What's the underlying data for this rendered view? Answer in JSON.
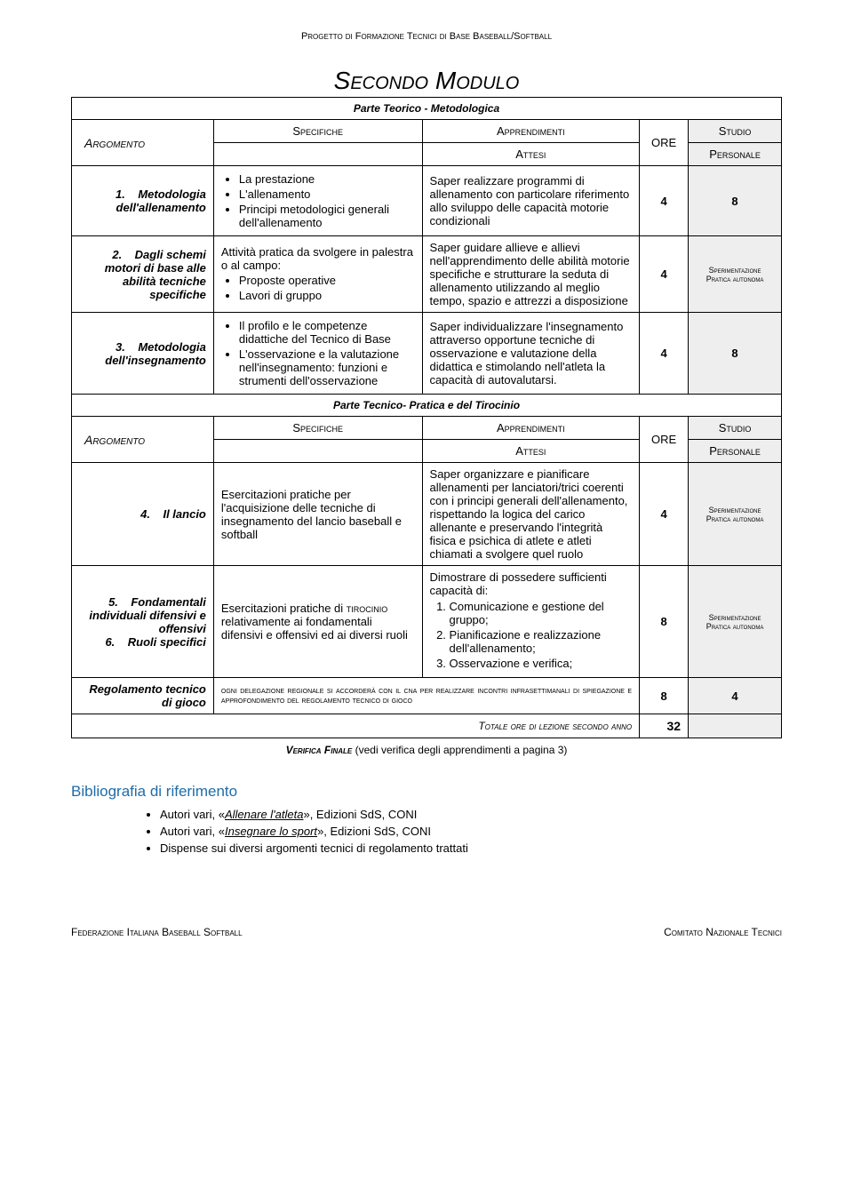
{
  "header": "Progetto di Formazione Tecnici di Base Baseball/Softball",
  "title": "Secondo Modulo",
  "sections": [
    {
      "title": "Parte Teorico - Metodologica",
      "columns": {
        "arg": "Argomento",
        "spec": "Specifiche",
        "appr_top": "Apprendimenti",
        "appr_bot": "Attesi",
        "ore": "ORE",
        "studio_top": "Studio",
        "studio_bot": "Personale"
      },
      "rows": [
        {
          "num": "1.",
          "arg": "Metodologia dell'allenamento",
          "spec_bullets": [
            "La prestazione",
            "L'allenamento",
            "Principi metodologici generali dell'allenamento"
          ],
          "appr": "Saper realizzare programmi di allenamento con particolare riferimento allo sviluppo delle capacità motorie condizionali",
          "ore": "4",
          "studio": "8",
          "studio_small": false
        },
        {
          "num": "2.",
          "arg": "Dagli schemi motori di base alle abilità tecniche specifiche",
          "spec_intro": "Attività pratica da svolgere in palestra o al campo:",
          "spec_bullets": [
            "Proposte operative",
            "Lavori di gruppo"
          ],
          "appr": "Saper guidare allieve e allievi nell'apprendimento delle abilità motorie specifiche e strutturare la seduta di allenamento utilizzando al meglio tempo, spazio e attrezzi a disposizione",
          "ore": "4",
          "studio_lines": [
            "Sperimentazione",
            "Pratica autonoma"
          ],
          "studio_small": true
        },
        {
          "num": "3.",
          "arg": "Metodologia dell'insegnamento",
          "spec_bullets": [
            "Il profilo e le competenze didattiche del Tecnico di Base",
            "L'osservazione e la valutazione nell'insegnamento: funzioni e strumenti dell'osservazione"
          ],
          "appr": "Saper individualizzare l'insegnamento attraverso opportune tecniche di osservazione e valutazione della didattica e stimolando nell'atleta la capacità di autovalutarsi.",
          "ore": "4",
          "studio": "8",
          "studio_small": false
        }
      ]
    },
    {
      "title": "Parte Tecnico- Pratica e del Tirocinio",
      "columns": {
        "arg": "Argomento",
        "spec": "Specifiche",
        "appr_top": "Apprendimenti",
        "appr_bot": "Attesi",
        "ore": "ORE",
        "studio_top": "Studio",
        "studio_bot": "Personale"
      },
      "rows": [
        {
          "num": "4.",
          "arg": "Il lancio",
          "spec": "Esercitazioni pratiche per l'acquisizione delle tecniche di insegnamento del lancio baseball e softball",
          "appr": "Saper organizzare e pianificare allenamenti per lanciatori/trici coerenti con i principi generali dell'allenamento, rispettando la logica del carico allenante e preservando l'integrità fisica e psichica di atlete e atleti chiamati a svolgere quel ruolo",
          "ore": "4",
          "studio_lines": [
            "Sperimentazione",
            "Pratica autonoma"
          ],
          "studio_small": true
        },
        {
          "nums": [
            "5.",
            "6."
          ],
          "args": [
            "Fondamentali individuali difensivi e offensivi",
            "Ruoli specifici"
          ],
          "spec_html": "Esercitazioni pratiche di <span style='font-variant:small-caps'>tirocinio</span> relativamente ai fondamentali difensivi e offensivi ed ai diversi ruoli",
          "appr_intro": "Dimostrare di possedere sufficienti capacità di:",
          "appr_list": [
            "Comunicazione e gestione del gruppo;",
            "Pianificazione e realizzazione dell'allenamento;",
            "Osservazione e verifica;"
          ],
          "ore": "8",
          "studio_lines": [
            "Sperimentazione",
            "Pratica autonoma"
          ],
          "studio_small": true
        },
        {
          "arg": "Regolamento tecnico di gioco",
          "spec_full": "ogni delegazione regionale si accorderà con il cna per realizzare incontri infrasettimanali di spiegazione e approfondimento del regolamento tecnico di gioco",
          "ore": "8",
          "studio": "4"
        }
      ]
    }
  ],
  "total": {
    "label": "Totale ore di lezione secondo anno",
    "value": "32"
  },
  "verifica": {
    "label": "Verifica Finale",
    "note": "(vedi verifica degli apprendimenti a pagina 3)"
  },
  "bibliography": {
    "title": "Bibliografia di riferimento",
    "items": [
      {
        "prefix": "Autori vari, «",
        "title": "Allenare l'atleta",
        "suffix": "», Edizioni SdS, CONI"
      },
      {
        "prefix": "Autori vari, «",
        "title": "Insegnare lo sport",
        "suffix": "», Edizioni SdS, CONI"
      },
      {
        "text": "Dispense sui diversi argomenti tecnici di regolamento trattati"
      }
    ]
  },
  "footer": {
    "left": "Federazione Italiana Baseball Softball",
    "right": "Comitato Nazionale Tecnici"
  }
}
